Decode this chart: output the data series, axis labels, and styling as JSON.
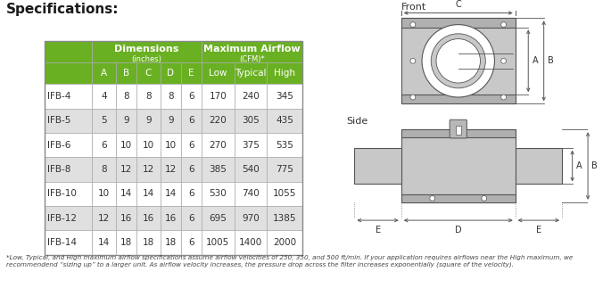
{
  "title": "Specifications:",
  "footnote": "*Low, Typical, and High maximum airflow specifications assume airflow velocities of 250, 350, and 500 ft/min. If your application requires airflows near the High maximum, we\nrecommendend “sizing up” to a larger unit. As airflow velocity increases, the pressure drop across the filter increases exponentially (square of the velocity).",
  "col_headers_row1_left": "Dimensions",
  "col_headers_row1_left_sub": "(inches)",
  "col_headers_row1_right": "Maximum Airflow",
  "col_headers_row1_right_sub": "(CFM)*",
  "col_headers_row2": [
    "A",
    "B",
    "C",
    "D",
    "E",
    "Low",
    "Typical",
    "High"
  ],
  "rows": [
    [
      "IFB-4",
      4,
      8,
      8,
      8,
      6,
      170,
      240,
      345
    ],
    [
      "IFB-5",
      5,
      9,
      9,
      9,
      6,
      220,
      305,
      435
    ],
    [
      "IFB-6",
      6,
      10,
      10,
      10,
      6,
      270,
      375,
      535
    ],
    [
      "IFB-8",
      8,
      12,
      12,
      12,
      6,
      385,
      540,
      775
    ],
    [
      "IFB-10",
      10,
      14,
      14,
      14,
      6,
      530,
      740,
      1055
    ],
    [
      "IFB-12",
      12,
      16,
      16,
      16,
      6,
      695,
      970,
      1385
    ],
    [
      "IFB-14",
      14,
      18,
      18,
      18,
      6,
      1005,
      1400,
      2000
    ]
  ],
  "header_bg_green": "#6ab023",
  "header_text_white": "#ffffff",
  "row_bg_white": "#ffffff",
  "row_bg_gray": "#e0e0e0",
  "border_color": "#aaaaaa",
  "text_color": "#333333",
  "title_color": "#1a1a1a",
  "diagram_gray": "#c8c8c8",
  "diagram_mid": "#b0b0b0",
  "diagram_line": "#555555",
  "front_label": "Front",
  "side_label": "Side"
}
